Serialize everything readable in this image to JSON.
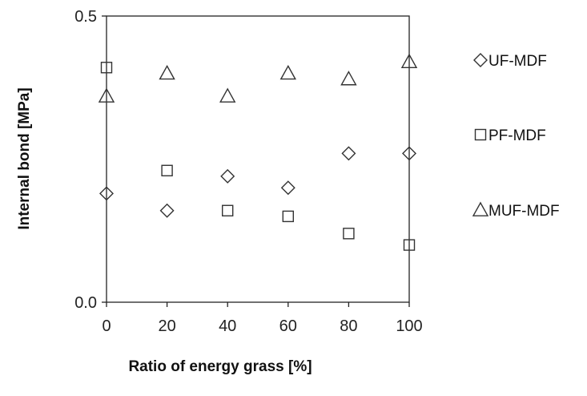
{
  "chart_data": {
    "type": "scatter",
    "xlabel": "Ratio of energy grass [%]",
    "ylabel": "Internal bond [MPa]",
    "xlim": [
      0,
      100
    ],
    "ylim": [
      0.0,
      0.5
    ],
    "x_ticks": [
      "0",
      "20",
      "40",
      "60",
      "80",
      "100"
    ],
    "y_ticks": [
      "0.0",
      "0.5"
    ],
    "grid": false,
    "legend_position": "right",
    "series": [
      {
        "name": "UF-MDF",
        "marker": "diamond",
        "x": [
          0,
          20,
          40,
          60,
          80,
          100
        ],
        "y": [
          0.19,
          0.16,
          0.22,
          0.2,
          0.26,
          0.26
        ]
      },
      {
        "name": "PF-MDF",
        "marker": "square",
        "x": [
          0,
          20,
          40,
          60,
          80,
          100
        ],
        "y": [
          0.41,
          0.23,
          0.16,
          0.15,
          0.12,
          0.1
        ]
      },
      {
        "name": "MUF-MDF",
        "marker": "triangle",
        "x": [
          0,
          20,
          40,
          60,
          80,
          100
        ],
        "y": [
          0.36,
          0.4,
          0.36,
          0.4,
          0.39,
          0.42
        ]
      }
    ]
  }
}
